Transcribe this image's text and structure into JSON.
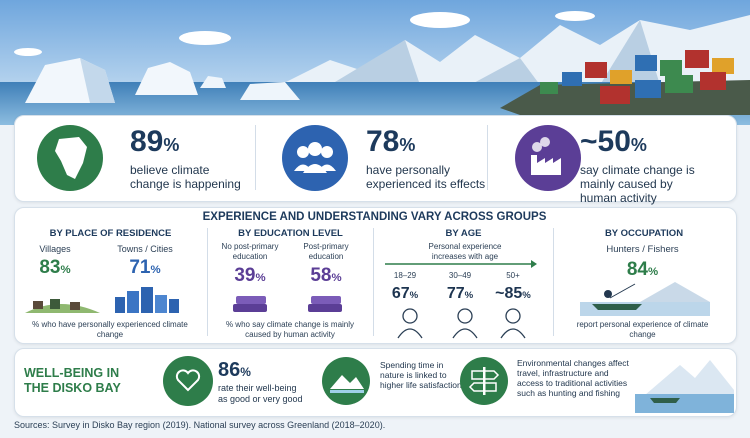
{
  "stats": [
    {
      "value": "89",
      "unit": "%",
      "text": "believe climate change is happening"
    },
    {
      "value": "78",
      "unit": "%",
      "text": "have personally experienced its effects"
    },
    {
      "value": "~50",
      "unit": "%",
      "text": "say climate change is mainly caused by human activity"
    }
  ],
  "groups": {
    "title": "EXPERIENCE AND UNDERSTANDING VARY ACROSS GROUPS",
    "residence": {
      "heading": "BY PLACE OF RESIDENCE",
      "items": [
        {
          "label": "Villages",
          "value": "83",
          "unit": "%"
        },
        {
          "label": "Towns / Cities",
          "value": "71",
          "unit": "%"
        }
      ],
      "note": "% who have personally experienced climate change"
    },
    "education": {
      "heading": "BY EDUCATION LEVEL",
      "items": [
        {
          "label": "No post-primary education",
          "value": "39",
          "unit": "%"
        },
        {
          "label": "Post-primary education",
          "value": "58",
          "unit": "%"
        }
      ],
      "note": "% who say climate change is mainly caused by human activity"
    },
    "age": {
      "heading": "BY AGE",
      "subheading": "Personal experience increases with age",
      "items": [
        {
          "label": "18–29",
          "value": "67",
          "unit": "%"
        },
        {
          "label": "30–49",
          "value": "77",
          "unit": "%"
        },
        {
          "label": "50+",
          "value": "~85",
          "unit": "%"
        }
      ]
    },
    "occupation": {
      "heading": "BY OCCUPATION",
      "items": [
        {
          "label": "Hunters / Fishers",
          "value": "84",
          "unit": "%"
        }
      ],
      "note": "report personal experience of climate change"
    }
  },
  "wellbeing": {
    "title": "WELL-BEING IN THE DISKO BAY",
    "value": "86",
    "unit": "%",
    "text": "rate their well-being as good or very good",
    "nature": "Spending time in nature is linked to higher life satisfaction",
    "environment": "Environmental changes affect travel, infrastructure and access to traditional activities such as hunting and fishing"
  },
  "sources": "Sources: Survey in Disko Bay region (2019). National survey across Greenland (2018–2020)."
}
